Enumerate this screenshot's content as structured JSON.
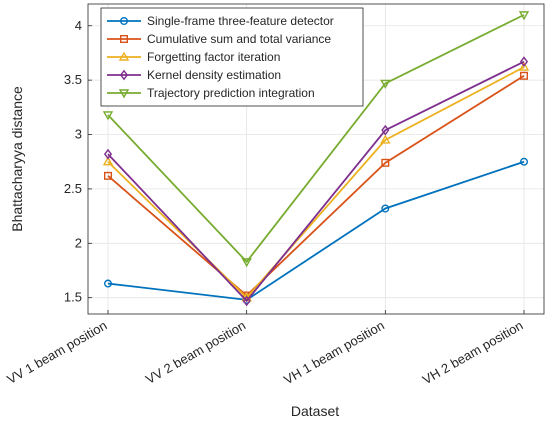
{
  "chart_data": {
    "type": "line",
    "categories": [
      "VV 1 beam position",
      "VV 2 beam position",
      "VH 1 beam position",
      "VH 2 beam position"
    ],
    "xlabel": "Dataset",
    "ylabel": "Bhattacharyya distance",
    "ylim": [
      1.35,
      4.2
    ],
    "yticks": [
      1.5,
      2,
      2.5,
      3,
      3.5,
      4
    ],
    "ytick_labels": [
      "1.5",
      "2",
      "2.5",
      "3",
      "3.5",
      "4"
    ],
    "grid": true,
    "legend_position": "top-left",
    "series": [
      {
        "name": "Single-frame three-feature detector",
        "values": [
          1.63,
          1.48,
          2.32,
          2.75
        ],
        "color": "#0072BD",
        "marker": "circle"
      },
      {
        "name": "Cumulative sum and total variance",
        "values": [
          2.62,
          1.52,
          2.74,
          3.54
        ],
        "color": "#D95319",
        "marker": "square"
      },
      {
        "name": "Forgetting factor iteration",
        "values": [
          2.75,
          1.5,
          2.95,
          3.62
        ],
        "color": "#EDB120",
        "marker": "triangle-up"
      },
      {
        "name": "Kernel density estimation",
        "values": [
          2.82,
          1.47,
          3.04,
          3.67
        ],
        "color": "#7E2F8E",
        "marker": "diamond"
      },
      {
        "name": "Trajectory prediction integration",
        "values": [
          3.18,
          1.83,
          3.47,
          4.1
        ],
        "color": "#77AC30",
        "marker": "triangle-down"
      }
    ]
  }
}
